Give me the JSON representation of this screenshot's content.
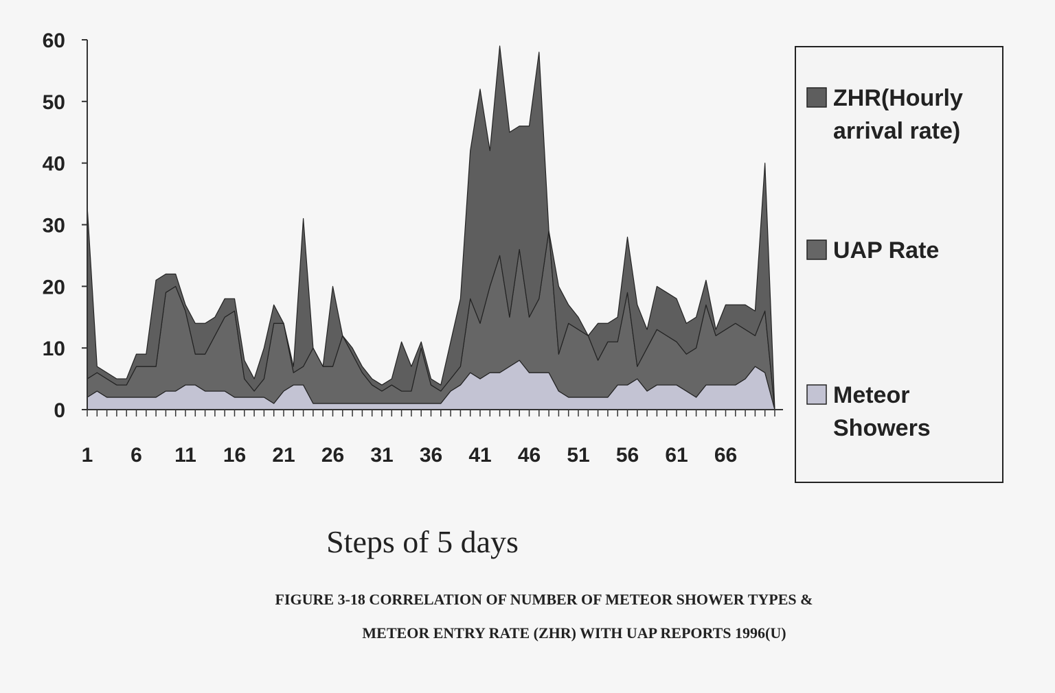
{
  "chart_data": {
    "type": "area",
    "stacked": true,
    "xlabel": "Steps of 5 days",
    "ylabel": "",
    "ylim": [
      0,
      60
    ],
    "yticks": [
      0,
      10,
      20,
      30,
      40,
      50,
      60
    ],
    "x": [
      1,
      2,
      3,
      4,
      5,
      6,
      7,
      8,
      9,
      10,
      11,
      12,
      13,
      14,
      15,
      16,
      17,
      18,
      19,
      20,
      21,
      22,
      23,
      24,
      25,
      26,
      27,
      28,
      29,
      30,
      31,
      32,
      33,
      34,
      35,
      36,
      37,
      38,
      39,
      40,
      41,
      42,
      43,
      44,
      45,
      46,
      47,
      48,
      49,
      50,
      51,
      52,
      53,
      54,
      55,
      56,
      57,
      58,
      59,
      60,
      61,
      62,
      63,
      64,
      65,
      66,
      67,
      68,
      69,
      70,
      71
    ],
    "xtick_labels": [
      "1",
      "6",
      "11",
      "16",
      "21",
      "26",
      "31",
      "36",
      "41",
      "46",
      "51",
      "56",
      "61",
      "66"
    ],
    "grid": false,
    "legend_position": "right",
    "series": [
      {
        "name": "Meteor Showers",
        "color": "#c3c3d3",
        "values": [
          2,
          3,
          2,
          2,
          2,
          2,
          2,
          2,
          3,
          3,
          4,
          4,
          3,
          3,
          3,
          2,
          2,
          2,
          2,
          1,
          3,
          4,
          4,
          1,
          1,
          1,
          1,
          1,
          1,
          1,
          1,
          1,
          1,
          1,
          1,
          1,
          1,
          3,
          4,
          6,
          5,
          6,
          6,
          7,
          8,
          6,
          6,
          6,
          3,
          2,
          2,
          2,
          2,
          2,
          4,
          4,
          5,
          3,
          4,
          4,
          4,
          3,
          2,
          4,
          4,
          4,
          4,
          5,
          7,
          6,
          0
        ]
      },
      {
        "name": "UAP Rate",
        "color": "#666666",
        "values": [
          3,
          3,
          3,
          2,
          2,
          5,
          5,
          5,
          16,
          17,
          12,
          5,
          6,
          9,
          12,
          14,
          3,
          1,
          3,
          13,
          11,
          2,
          3,
          9,
          6,
          6,
          11,
          8,
          5,
          3,
          2,
          3,
          2,
          2,
          9,
          3,
          2,
          2,
          3,
          12,
          9,
          14,
          19,
          8,
          18,
          9,
          12,
          23,
          6,
          12,
          11,
          10,
          6,
          9,
          7,
          15,
          2,
          7,
          9,
          8,
          7,
          6,
          8,
          13,
          8,
          9,
          10,
          8,
          5,
          10,
          0
        ]
      },
      {
        "name": "ZHR(Hourly arrival rate)",
        "color": "#5e5e5e",
        "values": [
          28,
          1,
          1,
          1,
          1,
          2,
          2,
          14,
          3,
          2,
          1,
          5,
          5,
          3,
          3,
          2,
          3,
          2,
          5,
          3,
          0,
          1,
          24,
          0,
          0,
          13,
          0,
          1,
          1,
          1,
          1,
          1,
          8,
          4,
          1,
          1,
          1,
          6,
          11,
          24,
          38,
          22,
          34,
          30,
          20,
          31,
          40,
          0,
          11,
          3,
          2,
          0,
          6,
          3,
          4,
          9,
          10,
          3,
          7,
          7,
          7,
          5,
          5,
          4,
          1,
          4,
          3,
          4,
          4,
          24,
          0
        ]
      }
    ]
  },
  "legend": {
    "items": [
      {
        "lines": [
          "ZHR(Hourly",
          "arrival rate)"
        ],
        "color": "#5e5e5e"
      },
      {
        "lines": [
          "UAP Rate"
        ],
        "color": "#666666"
      },
      {
        "lines": [
          "Meteor",
          "Showers"
        ],
        "color": "#c3c3d3"
      }
    ]
  },
  "caption": {
    "line1": "FIGURE 3-18 CORRELATION OF NUMBER OF METEOR SHOWER TYPES &",
    "line2": "METEOR ENTRY RATE (ZHR) WITH UAP REPORTS 1996(U)"
  }
}
